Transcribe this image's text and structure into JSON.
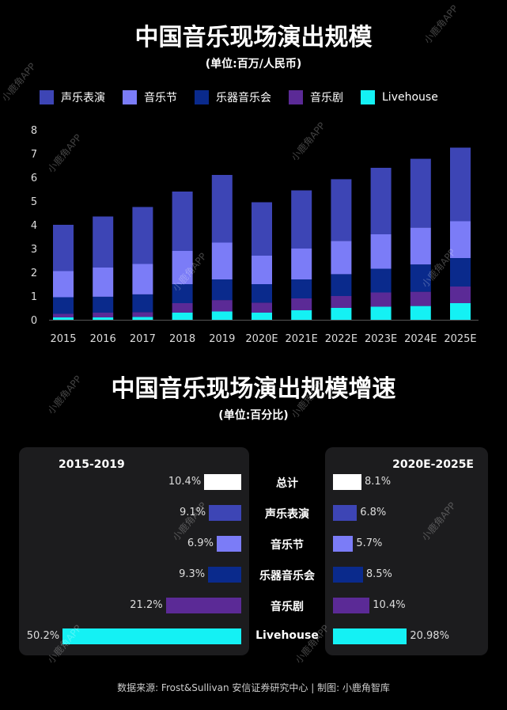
{
  "title_top": "中国音乐现场演出规模",
  "subtitle_top": "(单位:百万/人民币)",
  "title_bottom": "中国音乐现场演出规模增速",
  "subtitle_bottom": "(单位:百分比)",
  "source": "数据来源: Frost&Sullivan 安信证券研究中心 | 制图: 小鹿角智库",
  "watermark": "小鹿角APP",
  "colors": {
    "声乐表演": "#3d45b5",
    "音乐节": "#7b7cf7",
    "乐器音乐会": "#0a2a8c",
    "音乐剧": "#5b2a96",
    "Livehouse": "#14f1f4",
    "总计": "#ffffff"
  },
  "chart_data": [
    {
      "type": "bar",
      "stacked": true,
      "title": "中国音乐现场演出规模",
      "subtitle": "(单位:百万/人民币)",
      "categories": [
        "2015",
        "2016",
        "2017",
        "2018",
        "2019",
        "2020E",
        "2021E",
        "2022E",
        "2023E",
        "2024E",
        "2025E"
      ],
      "ylim": [
        0,
        8
      ],
      "yticks": [
        0,
        1,
        2,
        3,
        4,
        5,
        6,
        7,
        8
      ],
      "legend_position": "top",
      "series": [
        {
          "name": "Livehouse",
          "values": [
            0.1,
            0.1,
            0.12,
            0.3,
            0.35,
            0.3,
            0.4,
            0.5,
            0.55,
            0.58,
            0.7
          ]
        },
        {
          "name": "音乐剧",
          "values": [
            0.15,
            0.2,
            0.2,
            0.4,
            0.48,
            0.42,
            0.5,
            0.5,
            0.6,
            0.6,
            0.7
          ]
        },
        {
          "name": "乐器音乐会",
          "values": [
            0.7,
            0.67,
            0.75,
            0.8,
            0.87,
            0.78,
            0.8,
            0.92,
            1.0,
            1.15,
            1.2
          ]
        },
        {
          "name": "音乐节",
          "values": [
            1.1,
            1.23,
            1.28,
            1.4,
            1.55,
            1.2,
            1.3,
            1.4,
            1.45,
            1.55,
            1.55
          ]
        },
        {
          "name": "声乐表演",
          "values": [
            1.95,
            2.15,
            2.4,
            2.5,
            2.85,
            2.25,
            2.45,
            2.6,
            2.8,
            2.9,
            3.1
          ]
        }
      ]
    },
    {
      "type": "bar",
      "orientation": "horizontal",
      "title": "中国音乐现场演出规模增速",
      "subtitle": "(单位:百分比)",
      "categories": [
        "总计",
        "声乐表演",
        "音乐节",
        "乐器音乐会",
        "音乐剧",
        "Livehouse"
      ],
      "series": [
        {
          "name": "2015-2019",
          "values": [
            10.4,
            9.1,
            6.9,
            9.3,
            21.2,
            50.2
          ],
          "labels": [
            "10.4%",
            "9.1%",
            "6.9%",
            "9.3%",
            "21.2%",
            "50.2%"
          ]
        },
        {
          "name": "2020E-2025E",
          "values": [
            8.1,
            6.8,
            5.7,
            8.5,
            10.4,
            20.98
          ],
          "labels": [
            "8.1%",
            "6.8%",
            "5.7%",
            "8.5%",
            "10.4%",
            "20.98%"
          ]
        }
      ]
    }
  ]
}
